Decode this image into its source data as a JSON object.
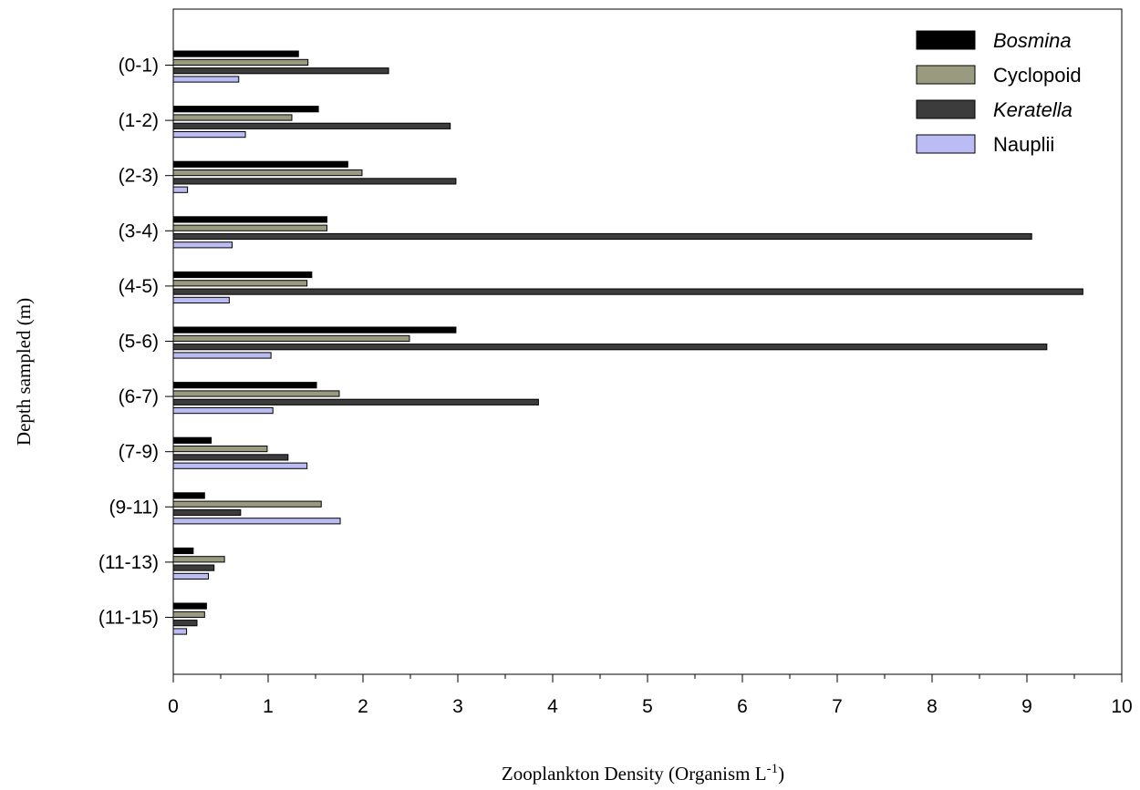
{
  "chart_data": {
    "type": "bar",
    "orientation": "horizontal",
    "title": "",
    "xlabel": "Zooplankton Density (Organism L",
    "xlabel_superscript": "-1",
    "xlabel_suffix": ")",
    "ylabel": "Depth sampled (m)",
    "xlim": [
      0,
      10
    ],
    "x_ticks": [
      "0",
      "1",
      "2",
      "3",
      "4",
      "5",
      "6",
      "7",
      "8",
      "9",
      "10"
    ],
    "grid": false,
    "legend_position": "top-right",
    "categories": [
      "(0-1)",
      "(1-2)",
      "(2-3)",
      "(3-4)",
      "(4-5)",
      "(5-6)",
      "(6-7)",
      "(7-9)",
      "(9-11)",
      "(11-13)",
      "(11-15)"
    ],
    "series": [
      {
        "name": "Bosmina",
        "italic": true,
        "color": "#000000",
        "values": [
          1.32,
          1.53,
          1.84,
          1.62,
          1.46,
          2.98,
          1.51,
          0.4,
          0.33,
          0.21,
          0.35
        ]
      },
      {
        "name": "Cyclopoid",
        "italic": false,
        "color": "#9a9a80",
        "values": [
          1.42,
          1.25,
          1.99,
          1.62,
          1.41,
          2.49,
          1.75,
          0.99,
          1.56,
          0.54,
          0.33
        ]
      },
      {
        "name": "Keratella",
        "italic": true,
        "color": "#3c3c3c",
        "values": [
          2.27,
          2.92,
          2.98,
          9.05,
          9.59,
          9.21,
          3.85,
          1.21,
          0.71,
          0.43,
          0.25
        ]
      },
      {
        "name": "Nauplii",
        "italic": false,
        "color": "#bcbcf4",
        "values": [
          0.69,
          0.76,
          0.15,
          0.62,
          0.59,
          1.03,
          1.05,
          1.41,
          1.76,
          0.37,
          0.14
        ]
      }
    ]
  }
}
